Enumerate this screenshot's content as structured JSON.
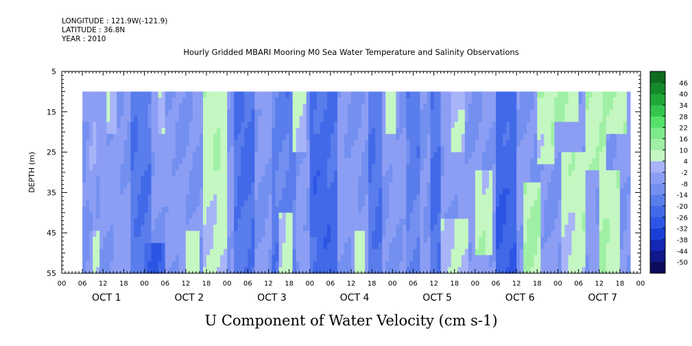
{
  "header": {
    "longitude": "LONGITUDE : 121.9W(-121.9)",
    "latitude": "LATITUDE : 36.8N",
    "year": "YEAR : 2010"
  },
  "title": "Hourly Gridded MBARI Mooring M0 Sea Water Temperature and Salinity Observations",
  "colors": {
    "strong_negative": "#1a3fd6",
    "moderate_negative": "#5577ee",
    "weak_negative": "#8c9ef4",
    "near_zero_negative": "#a8b4f8",
    "weak_positive": "#9ff0a4",
    "moderate_positive": "#55e06a",
    "strong_positive": "#0e6c1e"
  },
  "chart_data": {
    "type": "heatmap",
    "title": "U Component of Water Velocity (cm s-1)",
    "xlabel": "",
    "ylabel": "DEPTH (m)",
    "x_axis": {
      "units": "hours since Oct 1 2010 00:00",
      "range": [
        0,
        168
      ],
      "data_start_hour": 6,
      "data_end_hour": 165,
      "hour_tick_labels": [
        "00",
        "06",
        "12",
        "18",
        "00",
        "06",
        "12",
        "18",
        "00",
        "06",
        "12",
        "18",
        "00",
        "06",
        "12",
        "18",
        "00",
        "06",
        "12",
        "18",
        "00",
        "06",
        "12",
        "18",
        "00",
        "06",
        "12",
        "18",
        "00"
      ],
      "day_labels": [
        "OCT  1",
        "OCT  2",
        "OCT  3",
        "OCT  4",
        "OCT  5",
        "OCT  6",
        "OCT  7"
      ]
    },
    "y_axis": {
      "range": [
        55,
        5
      ],
      "ticks": [
        5,
        15,
        25,
        35,
        45,
        55
      ],
      "data_top": 10,
      "data_bottom": 55
    },
    "colorbar": {
      "levels": [
        -50,
        -44,
        -38,
        -32,
        -26,
        -20,
        -14,
        -8,
        -2,
        4,
        10,
        16,
        22,
        28,
        34,
        40,
        46
      ],
      "label_levels": [
        "46",
        "40",
        "34",
        "28",
        "22",
        "16",
        "10",
        "4",
        "-2",
        "-8",
        "-14",
        "-20",
        "-26",
        "-32",
        "-38",
        "-44",
        "-50"
      ],
      "colors": [
        "#0b0b5a",
        "#10188a",
        "#1426b4",
        "#1a3fd6",
        "#2d55e4",
        "#4169e8",
        "#5a7dec",
        "#7390f0",
        "#8c9ef4",
        "#a8b4f8",
        "#c4f7c2",
        "#9ff0a4",
        "#7ee98a",
        "#55e06a",
        "#33c54c",
        "#1ea838",
        "#148a2a",
        "#0e6c1e"
      ]
    },
    "field": {
      "description_of_regions": [
        {
          "hours": [
            6,
            7
          ],
          "depths": [
            10,
            55
          ],
          "u": -8
        },
        {
          "hours": [
            8,
            10
          ],
          "depths": [
            10,
            55
          ],
          "u": -4
        },
        {
          "hours": [
            9,
            11
          ],
          "depths": [
            45,
            55
          ],
          "u": 5
        },
        {
          "hours": [
            13,
            16
          ],
          "depths": [
            10,
            20
          ],
          "u": 5
        },
        {
          "hours": [
            20,
            26
          ],
          "depths": [
            10,
            55
          ],
          "u": -18
        },
        {
          "hours": [
            24,
            30
          ],
          "depths": [
            48,
            55
          ],
          "u": -24
        },
        {
          "hours": [
            28,
            30
          ],
          "depths": [
            10,
            20
          ],
          "u": 4
        },
        {
          "hours": [
            36,
            40
          ],
          "depths": [
            45,
            55
          ],
          "u": 5
        },
        {
          "hours": [
            41,
            48
          ],
          "depths": [
            10,
            55
          ],
          "u": 6
        },
        {
          "hours": [
            44,
            46
          ],
          "depths": [
            20,
            30
          ],
          "u": 10
        },
        {
          "hours": [
            50,
            56
          ],
          "depths": [
            10,
            55
          ],
          "u": -20
        },
        {
          "hours": [
            61,
            68
          ],
          "depths": [
            10,
            55
          ],
          "u": -16
        },
        {
          "hours": [
            63,
            67
          ],
          "depths": [
            40,
            55
          ],
          "u": 5
        },
        {
          "hours": [
            67,
            71
          ],
          "depths": [
            10,
            25
          ],
          "u": 6
        },
        {
          "hours": [
            72,
            80
          ],
          "depths": [
            10,
            55
          ],
          "u": -22
        },
        {
          "hours": [
            85,
            88
          ],
          "depths": [
            45,
            55
          ],
          "u": 5
        },
        {
          "hours": [
            89,
            93
          ],
          "depths": [
            10,
            55
          ],
          "u": -18
        },
        {
          "hours": [
            94,
            97
          ],
          "depths": [
            10,
            20
          ],
          "u": 4
        },
        {
          "hours": [
            100,
            104
          ],
          "depths": [
            10,
            55
          ],
          "u": -16
        },
        {
          "hours": [
            107,
            110
          ],
          "depths": [
            10,
            55
          ],
          "u": -20
        },
        {
          "hours": [
            110,
            118
          ],
          "depths": [
            42,
            55
          ],
          "u": 5
        },
        {
          "hours": [
            113,
            117
          ],
          "depths": [
            10,
            25
          ],
          "u": 3
        },
        {
          "hours": [
            120,
            125
          ],
          "depths": [
            30,
            50
          ],
          "u": 7
        },
        {
          "hours": [
            126,
            132
          ],
          "depths": [
            10,
            55
          ],
          "u": -24
        },
        {
          "hours": [
            134,
            139
          ],
          "depths": [
            32,
            55
          ],
          "u": 9
        },
        {
          "hours": [
            138,
            143
          ],
          "depths": [
            10,
            28
          ],
          "u": 8
        },
        {
          "hours": [
            142,
            150
          ],
          "depths": [
            10,
            18
          ],
          "u": 8
        },
        {
          "hours": [
            145,
            152
          ],
          "depths": [
            25,
            55
          ],
          "u": 6
        },
        {
          "hours": [
            152,
            158
          ],
          "depths": [
            10,
            30
          ],
          "u": 10
        },
        {
          "hours": [
            156,
            162
          ],
          "depths": [
            30,
            55
          ],
          "u": 9
        },
        {
          "hours": [
            158,
            164
          ],
          "depths": [
            10,
            20
          ],
          "u": 7
        }
      ],
      "background_u": -7
    }
  }
}
